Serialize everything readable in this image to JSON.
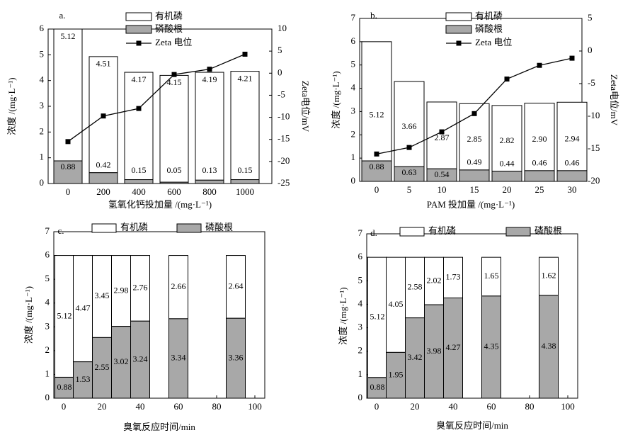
{
  "colors": {
    "organic_fill": "#ffffff",
    "phosphate_fill": "#a8a8a8",
    "line": "#000000"
  },
  "chart_data": [
    {
      "type": "bar+line",
      "panel_label": "a.",
      "title": "",
      "xlabel": "氢氧化钙投加量 /(mg·L⁻¹)",
      "ylabel": "浓度 /(mg·L⁻¹)",
      "y2label": "Zeta电位/mV",
      "categories": [
        "0",
        "200",
        "400",
        "600",
        "800",
        "1000"
      ],
      "ylim": [
        0,
        6
      ],
      "yticks": [
        "0",
        "1",
        "2",
        "3",
        "4",
        "5",
        "6"
      ],
      "y2lim": [
        -25,
        10
      ],
      "y2ticks": [
        "-25",
        "-20",
        "-15",
        "-10",
        "-5",
        "0",
        "5",
        "10"
      ],
      "series": [
        {
          "name": "磷酸根",
          "values": [
            0.88,
            0.42,
            0.15,
            0.05,
            0.13,
            0.15
          ],
          "labels": [
            "0.88",
            "0.42",
            "0.15",
            "0.05",
            "0.13",
            "0.15"
          ]
        },
        {
          "name": "有机磷",
          "values": [
            5.12,
            4.51,
            4.17,
            4.15,
            4.19,
            4.21
          ],
          "labels": [
            "5.12",
            "4.51",
            "4.17",
            "4.15",
            "4.19",
            "4.21"
          ]
        }
      ],
      "line_series": {
        "name": "Zeta 电位",
        "axis": "right",
        "values": [
          -15.5,
          -9.7,
          -8.0,
          -0.3,
          0.9,
          4.3
        ]
      },
      "legend": [
        "有机磷",
        "磷酸根",
        "Zeta 电位"
      ],
      "legend_position": "top-center"
    },
    {
      "type": "bar+line",
      "panel_label": "b.",
      "title": "",
      "xlabel": "PAM 投加量 /(mg·L⁻¹)",
      "ylabel": "浓度 /(mg·L⁻¹)",
      "y2label": "Zeta电位/mV",
      "categories": [
        "0",
        "5",
        "10",
        "15",
        "20",
        "25",
        "30"
      ],
      "ylim": [
        0,
        7
      ],
      "yticks": [
        "0",
        "1",
        "2",
        "3",
        "4",
        "5",
        "6",
        "7"
      ],
      "y2lim": [
        -20,
        5
      ],
      "y2ticks": [
        "-20",
        "-15",
        "-10",
        "-5",
        "0",
        "5"
      ],
      "series": [
        {
          "name": "磷酸根",
          "values": [
            0.88,
            0.63,
            0.54,
            0.49,
            0.44,
            0.46,
            0.46
          ],
          "labels": [
            "0.88",
            "0.63",
            "0.54",
            "0.49",
            "0.44",
            "0.46",
            "0.46"
          ]
        },
        {
          "name": "有机磷",
          "values": [
            5.12,
            3.66,
            2.87,
            2.85,
            2.82,
            2.9,
            2.94
          ],
          "labels": [
            "5.12",
            "3.66",
            "2.87",
            "2.85",
            "2.82",
            "2.90",
            "2.94"
          ]
        }
      ],
      "line_series": {
        "name": "Zeta 电位",
        "axis": "right",
        "values": [
          -15.8,
          -14.8,
          -12.4,
          -9.6,
          -4.3,
          -2.2,
          -1.1
        ]
      },
      "legend": [
        "有机磷",
        "磷酸根",
        "Zeta 电位"
      ],
      "legend_position": "top-center"
    },
    {
      "type": "stacked-bar",
      "panel_label": "c.",
      "title": "",
      "xlabel": "臭氧反应时间/min",
      "ylabel": "浓度 /(mg·L⁻¹)",
      "x": [
        0,
        10,
        20,
        30,
        40,
        60,
        90
      ],
      "xlim": [
        0,
        100
      ],
      "xticks": [
        "0",
        "20",
        "40",
        "60",
        "80",
        "100"
      ],
      "ylim": [
        0,
        7
      ],
      "yticks": [
        "0",
        "1",
        "2",
        "3",
        "4",
        "5",
        "6",
        "7"
      ],
      "series": [
        {
          "name": "磷酸根",
          "values": [
            0.88,
            1.53,
            2.55,
            3.02,
            3.24,
            3.34,
            3.36
          ],
          "labels": [
            "0.88",
            "1.53",
            "2.55",
            "3.02",
            "3.24",
            "3.34",
            "3.36"
          ]
        },
        {
          "name": "有机磷",
          "values": [
            5.12,
            4.47,
            3.45,
            2.98,
            2.76,
            2.66,
            2.64
          ],
          "labels": [
            "5.12",
            "4.47",
            "3.45",
            "2.98",
            "2.76",
            "2.66",
            "2.64"
          ]
        }
      ],
      "legend": [
        "有机磷",
        "磷酸根"
      ],
      "legend_position": "top-center"
    },
    {
      "type": "stacked-bar",
      "panel_label": "d.",
      "title": "",
      "xlabel": "臭氧反应时间/min",
      "ylabel": "浓度 /(mg·L⁻¹)",
      "x": [
        0,
        10,
        20,
        30,
        40,
        60,
        90
      ],
      "xlim": [
        0,
        100
      ],
      "xticks": [
        "0",
        "20",
        "40",
        "60",
        "80",
        "100"
      ],
      "ylim": [
        0,
        7
      ],
      "yticks": [
        "0",
        "1",
        "2",
        "3",
        "4",
        "5",
        "6",
        "7"
      ],
      "series": [
        {
          "name": "磷酸根",
          "values": [
            0.88,
            1.95,
            3.42,
            3.98,
            4.27,
            4.35,
            4.38
          ],
          "labels": [
            "0.88",
            "1.95",
            "3.42",
            "3.98",
            "4.27",
            "4.35",
            "4.38"
          ]
        },
        {
          "name": "有机磷",
          "values": [
            5.12,
            4.05,
            2.58,
            2.02,
            1.73,
            1.65,
            1.62
          ],
          "labels": [
            "5.12",
            "4.05",
            "2.58",
            "2.02",
            "1.73",
            "1.65",
            "1.62"
          ]
        }
      ],
      "legend": [
        "有机磷",
        "磷酸根"
      ],
      "legend_position": "top-center"
    }
  ]
}
